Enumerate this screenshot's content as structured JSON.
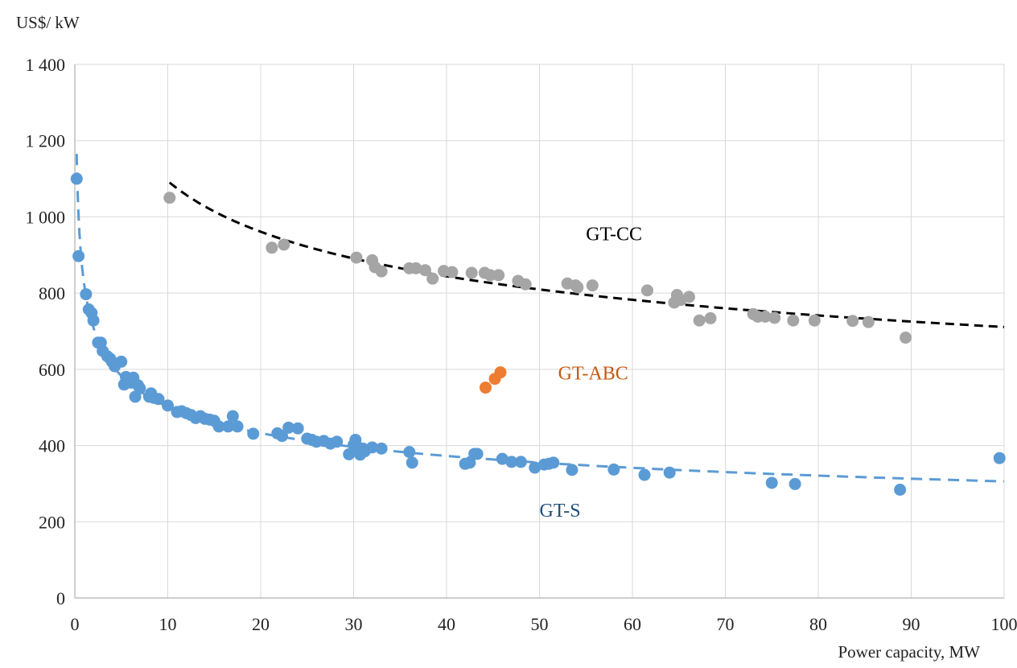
{
  "chart_data": {
    "type": "scatter",
    "title": "",
    "xlabel": "Power capacity, MW",
    "ylabel": "US$/ kW",
    "xlim": [
      0,
      100
    ],
    "ylim": [
      0,
      1400
    ],
    "x_ticks": [
      0,
      10,
      20,
      30,
      40,
      50,
      60,
      70,
      80,
      90,
      100
    ],
    "y_ticks": [
      0,
      200,
      400,
      600,
      800,
      1000,
      1200,
      1400
    ],
    "x_tick_labels": [
      "0",
      "10",
      "20",
      "30",
      "40",
      "50",
      "60",
      "70",
      "80",
      "90",
      "100"
    ],
    "y_tick_labels": [
      "0",
      "200",
      "400",
      "600",
      "800",
      "1 000",
      "1 200",
      "1 400"
    ],
    "grid": true,
    "legend": "none",
    "colors": {
      "gt_s": "#5b9bd5",
      "gt_cc": "#a5a5a5",
      "gt_abc": "#ed7d31",
      "gt_cc_trend": "#000000",
      "gt_s_label": "#1f4e79",
      "gt_cc_label": "#000000",
      "gt_abc_label": "#c55a11",
      "grid": "#d9d9d9",
      "axis": "#bfbfbf"
    },
    "series": [
      {
        "name": "GT-S",
        "key": "gt_s",
        "label_at": [
          50,
          230
        ],
        "trend": {
          "type": "power",
          "x_start": 0.2,
          "x_end": 100
        },
        "points": [
          [
            0.2,
            1100
          ],
          [
            0.4,
            897
          ],
          [
            1.2,
            797
          ],
          [
            1.5,
            757
          ],
          [
            1.8,
            748
          ],
          [
            2.0,
            728
          ],
          [
            2.5,
            670
          ],
          [
            2.8,
            670
          ],
          [
            3.0,
            648
          ],
          [
            3.5,
            634
          ],
          [
            3.8,
            628
          ],
          [
            4.0,
            620
          ],
          [
            4.3,
            608
          ],
          [
            5.0,
            620
          ],
          [
            5.3,
            560
          ],
          [
            5.5,
            580
          ],
          [
            6.0,
            565
          ],
          [
            6.3,
            578
          ],
          [
            6.5,
            528
          ],
          [
            6.8,
            558
          ],
          [
            7.0,
            550
          ],
          [
            8.0,
            528
          ],
          [
            8.2,
            537
          ],
          [
            8.5,
            525
          ],
          [
            9.0,
            522
          ],
          [
            10.0,
            505
          ],
          [
            11.0,
            488
          ],
          [
            11.5,
            490
          ],
          [
            12.0,
            485
          ],
          [
            12.5,
            480
          ],
          [
            13.0,
            472
          ],
          [
            13.5,
            477
          ],
          [
            14.0,
            470
          ],
          [
            14.5,
            468
          ],
          [
            15.0,
            465
          ],
          [
            15.5,
            450
          ],
          [
            16.5,
            450
          ],
          [
            17.0,
            477
          ],
          [
            17.5,
            450
          ],
          [
            19.2,
            431
          ],
          [
            21.8,
            432
          ],
          [
            22.3,
            425
          ],
          [
            23.0,
            447
          ],
          [
            24.0,
            445
          ],
          [
            25.0,
            418
          ],
          [
            25.5,
            415
          ],
          [
            26.0,
            410
          ],
          [
            26.8,
            412
          ],
          [
            27.5,
            405
          ],
          [
            28.2,
            410
          ],
          [
            29.5,
            377
          ],
          [
            30.0,
            402
          ],
          [
            30.2,
            415
          ],
          [
            30.5,
            395
          ],
          [
            30.7,
            376
          ],
          [
            31.0,
            392
          ],
          [
            31.2,
            385
          ],
          [
            32.0,
            395
          ],
          [
            33.0,
            392
          ],
          [
            36.0,
            383
          ],
          [
            36.3,
            355
          ],
          [
            42.0,
            352
          ],
          [
            42.5,
            355
          ],
          [
            43.0,
            378
          ],
          [
            43.3,
            378
          ],
          [
            46.0,
            365
          ],
          [
            47.0,
            357
          ],
          [
            48.0,
            357
          ],
          [
            49.5,
            342
          ],
          [
            50.5,
            350
          ],
          [
            51.0,
            352
          ],
          [
            51.5,
            355
          ],
          [
            53.5,
            336
          ],
          [
            58.0,
            337
          ],
          [
            61.3,
            323
          ],
          [
            64.0,
            329
          ],
          [
            75.0,
            302
          ],
          [
            77.5,
            299
          ],
          [
            88.8,
            284
          ],
          [
            99.5,
            367
          ]
        ]
      },
      {
        "name": "GT-CC",
        "key": "gt_cc",
        "label_at": [
          55,
          955
        ],
        "trend": {
          "type": "power",
          "x_start": 10.2,
          "x_end": 100
        },
        "points": [
          [
            10.2,
            1050
          ],
          [
            21.2,
            919
          ],
          [
            22.5,
            927
          ],
          [
            30.3,
            893
          ],
          [
            32.0,
            886
          ],
          [
            32.3,
            868
          ],
          [
            33.0,
            857
          ],
          [
            36.0,
            865
          ],
          [
            36.7,
            865
          ],
          [
            37.7,
            860
          ],
          [
            38.5,
            838
          ],
          [
            39.7,
            858
          ],
          [
            40.6,
            855
          ],
          [
            42.7,
            853
          ],
          [
            44.1,
            853
          ],
          [
            44.7,
            847
          ],
          [
            45.6,
            847
          ],
          [
            47.7,
            832
          ],
          [
            48.5,
            823
          ],
          [
            53.0,
            825
          ],
          [
            53.9,
            820
          ],
          [
            54.1,
            815
          ],
          [
            55.7,
            820
          ],
          [
            61.6,
            807
          ],
          [
            64.5,
            775
          ],
          [
            64.8,
            795
          ],
          [
            65.2,
            782
          ],
          [
            66.1,
            790
          ],
          [
            67.2,
            728
          ],
          [
            68.4,
            734
          ],
          [
            73.0,
            745
          ],
          [
            73.5,
            738
          ],
          [
            74.3,
            738
          ],
          [
            75.3,
            735
          ],
          [
            77.3,
            728
          ],
          [
            79.6,
            728
          ],
          [
            83.7,
            727
          ],
          [
            85.4,
            724
          ],
          [
            89.4,
            683
          ]
        ]
      },
      {
        "name": "GT-ABC",
        "key": "gt_abc",
        "label_at": [
          52,
          590
        ],
        "trend": null,
        "points": [
          [
            44.2,
            552
          ],
          [
            45.2,
            575
          ],
          [
            45.8,
            592
          ]
        ]
      }
    ]
  }
}
